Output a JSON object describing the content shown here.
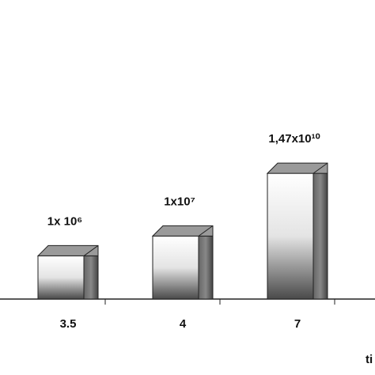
{
  "chart_data": {
    "type": "bar3d",
    "x_label": "ti",
    "categories": [
      "3.5",
      "4",
      "7"
    ],
    "values": [
      1000000,
      10000000,
      14700000000
    ],
    "value_labels": [
      "1x 10⁶",
      "1x10⁷",
      "1,47x10¹⁰"
    ],
    "log_scale": true,
    "ylim": [
      2000,
      1000000000000000000
    ],
    "color": "#888888"
  }
}
